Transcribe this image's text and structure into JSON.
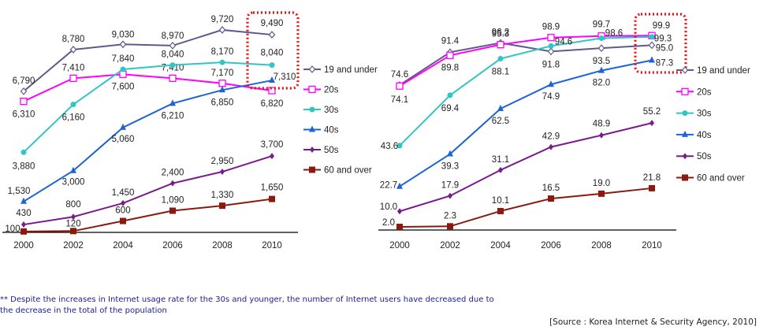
{
  "chart_data": [
    {
      "type": "line",
      "title": "",
      "xlabel": "",
      "ylabel": "",
      "categories": [
        "2000",
        "2002",
        "2004",
        "2006",
        "2008",
        "2010"
      ],
      "ylim": [
        0,
        10000
      ],
      "grid": false,
      "legend": "right",
      "highlight": "2010",
      "series": [
        {
          "name": "19 and under",
          "color": "#5e5a8c",
          "marker": "diamond-open",
          "values": [
            6790,
            8780,
            9030,
            8970,
            9720,
            9490
          ],
          "labels": [
            "6,790",
            "8,780",
            "9,030",
            "8,970",
            "9,720",
            "9,490"
          ]
        },
        {
          "name": "20s",
          "color": "#ff00ff",
          "marker": "square-open",
          "values": [
            6310,
            7410,
            7600,
            7410,
            7170,
            6820
          ],
          "labels": [
            "6,310",
            "7,410",
            "7,600",
            "7,410",
            "7,170",
            "6,820"
          ]
        },
        {
          "name": "30s",
          "color": "#33c4c4",
          "marker": "circle",
          "values": [
            3880,
            6160,
            7840,
            8040,
            8170,
            8040
          ],
          "labels": [
            "3,880",
            "6,160",
            "7,840",
            "8,040",
            "8,170",
            "8,040"
          ]
        },
        {
          "name": "40s",
          "color": "#1e64d2",
          "marker": "triangle",
          "values": [
            1530,
            3000,
            5060,
            6210,
            6850,
            7310
          ],
          "labels": [
            "1,530",
            "3,000",
            "5,060",
            "6,210",
            "6,850",
            "7,310"
          ]
        },
        {
          "name": "50s",
          "color": "#7a1a8c",
          "marker": "diamond",
          "values": [
            430,
            800,
            1450,
            2400,
            2950,
            3700
          ],
          "labels": [
            "430",
            "800",
            "1,450",
            "2,400",
            "2,950",
            "3,700"
          ]
        },
        {
          "name": "60 and over",
          "color": "#8b1a0e",
          "marker": "square",
          "values": [
            100,
            120,
            600,
            1090,
            1330,
            1650
          ],
          "labels": [
            "100",
            "120",
            "600",
            "1,090",
            "1,330",
            "1,650"
          ]
        }
      ]
    },
    {
      "type": "line",
      "title": "",
      "xlabel": "",
      "ylabel": "",
      "categories": [
        "2000",
        "2002",
        "2004",
        "2006",
        "2008",
        "2010"
      ],
      "ylim": [
        0,
        100
      ],
      "grid": false,
      "legend": "right",
      "highlight": "2010",
      "series": [
        {
          "name": "19 and under",
          "color": "#5e5a8c",
          "marker": "diamond-open",
          "values": [
            74.6,
            91.4,
            96.2,
            91.8,
            93.5,
            95.0
          ],
          "labels": [
            "74.6",
            "91.4",
            "96.2",
            "91.8",
            "93.5",
            "95.0"
          ]
        },
        {
          "name": "20s",
          "color": "#ff00ff",
          "marker": "square-open",
          "values": [
            74.1,
            89.8,
            95.3,
            98.9,
            99.7,
            99.9
          ],
          "labels": [
            "74.1",
            "89.8",
            "95.3",
            "98.9",
            "99.7",
            "99.9"
          ]
        },
        {
          "name": "30s",
          "color": "#33c4c4",
          "marker": "circle",
          "values": [
            43.6,
            69.4,
            88.1,
            94.6,
            98.6,
            99.3
          ],
          "labels": [
            "43.6",
            "69.4",
            "88.1",
            "94.6",
            "98.6",
            "99.3"
          ]
        },
        {
          "name": "40s",
          "color": "#1e64d2",
          "marker": "triangle",
          "values": [
            22.7,
            39.3,
            62.5,
            74.9,
            82.0,
            87.3
          ],
          "labels": [
            "22.7",
            "39.3",
            "62.5",
            "74.9",
            "82.0",
            "87.3"
          ]
        },
        {
          "name": "50s",
          "color": "#7a1a8c",
          "marker": "diamond",
          "values": [
            10.0,
            17.9,
            31.1,
            42.9,
            48.9,
            55.2
          ],
          "labels": [
            "10.0",
            "17.9",
            "31.1",
            "42.9",
            "48.9",
            "55.2"
          ]
        },
        {
          "name": "60 and over",
          "color": "#8b1a0e",
          "marker": "square",
          "values": [
            2.0,
            2.3,
            10.1,
            16.5,
            19.0,
            21.8
          ],
          "labels": [
            "2.0",
            "2.3",
            "10.1",
            "16.5",
            "19.0",
            "21.8"
          ]
        }
      ]
    }
  ],
  "footnote": "** Despite the increases in Internet usage rate for the 30s and younger, the number of Internet users have decreased due to the decrease in the total of the population",
  "source": "[Source :   Korea Internet & Security Agency, 2010]",
  "highlight_color": "#ee1111"
}
